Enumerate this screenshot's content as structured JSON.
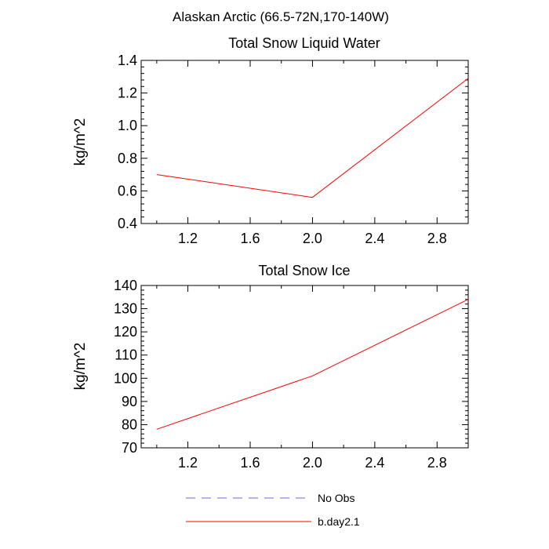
{
  "figure_title": "Alaskan Arctic (66.5-72N,170-140W)",
  "chart_data": [
    {
      "type": "line",
      "title": "Total Snow Liquid Water",
      "xlabel": "",
      "ylabel": "kg/m^2",
      "xlim": [
        0.9,
        3.0
      ],
      "ylim": [
        0.4,
        1.4
      ],
      "xticks": [
        1.2,
        1.6,
        2.0,
        2.4,
        2.8
      ],
      "xtick_labels": [
        "1.2",
        "1.6",
        "2.0",
        "2.4",
        "2.8"
      ],
      "yticks": [
        0.4,
        0.6,
        0.8,
        1.0,
        1.2,
        1.4
      ],
      "ytick_labels": [
        "0.4",
        "0.6",
        "0.8",
        "1.0",
        "1.2",
        "1.4"
      ],
      "grid": false,
      "series": [
        {
          "name": "b.day2.1",
          "color": "#ff0000",
          "x": [
            1,
            2,
            3
          ],
          "values": [
            0.7,
            0.56,
            1.29
          ]
        }
      ]
    },
    {
      "type": "line",
      "title": "Total Snow Ice",
      "xlabel": "",
      "ylabel": "kg/m^2",
      "xlim": [
        0.9,
        3.0
      ],
      "ylim": [
        70,
        140
      ],
      "xticks": [
        1.2,
        1.6,
        2.0,
        2.4,
        2.8
      ],
      "xtick_labels": [
        "1.2",
        "1.6",
        "2.0",
        "2.4",
        "2.8"
      ],
      "yticks": [
        70,
        80,
        90,
        100,
        110,
        120,
        130,
        140
      ],
      "ytick_labels": [
        "70",
        "80",
        "90",
        "100",
        "110",
        "120",
        "130",
        "140"
      ],
      "grid": false,
      "series": [
        {
          "name": "b.day2.1",
          "color": "#ff0000",
          "x": [
            1,
            2,
            3
          ],
          "values": [
            78,
            101,
            134
          ]
        }
      ]
    }
  ],
  "legend": {
    "placement": "bottom",
    "items": [
      {
        "label": "No Obs",
        "color": "#6b6bd6",
        "style": "dashed"
      },
      {
        "label": "b.day2.1",
        "color": "#ff0000",
        "style": "solid"
      }
    ]
  }
}
